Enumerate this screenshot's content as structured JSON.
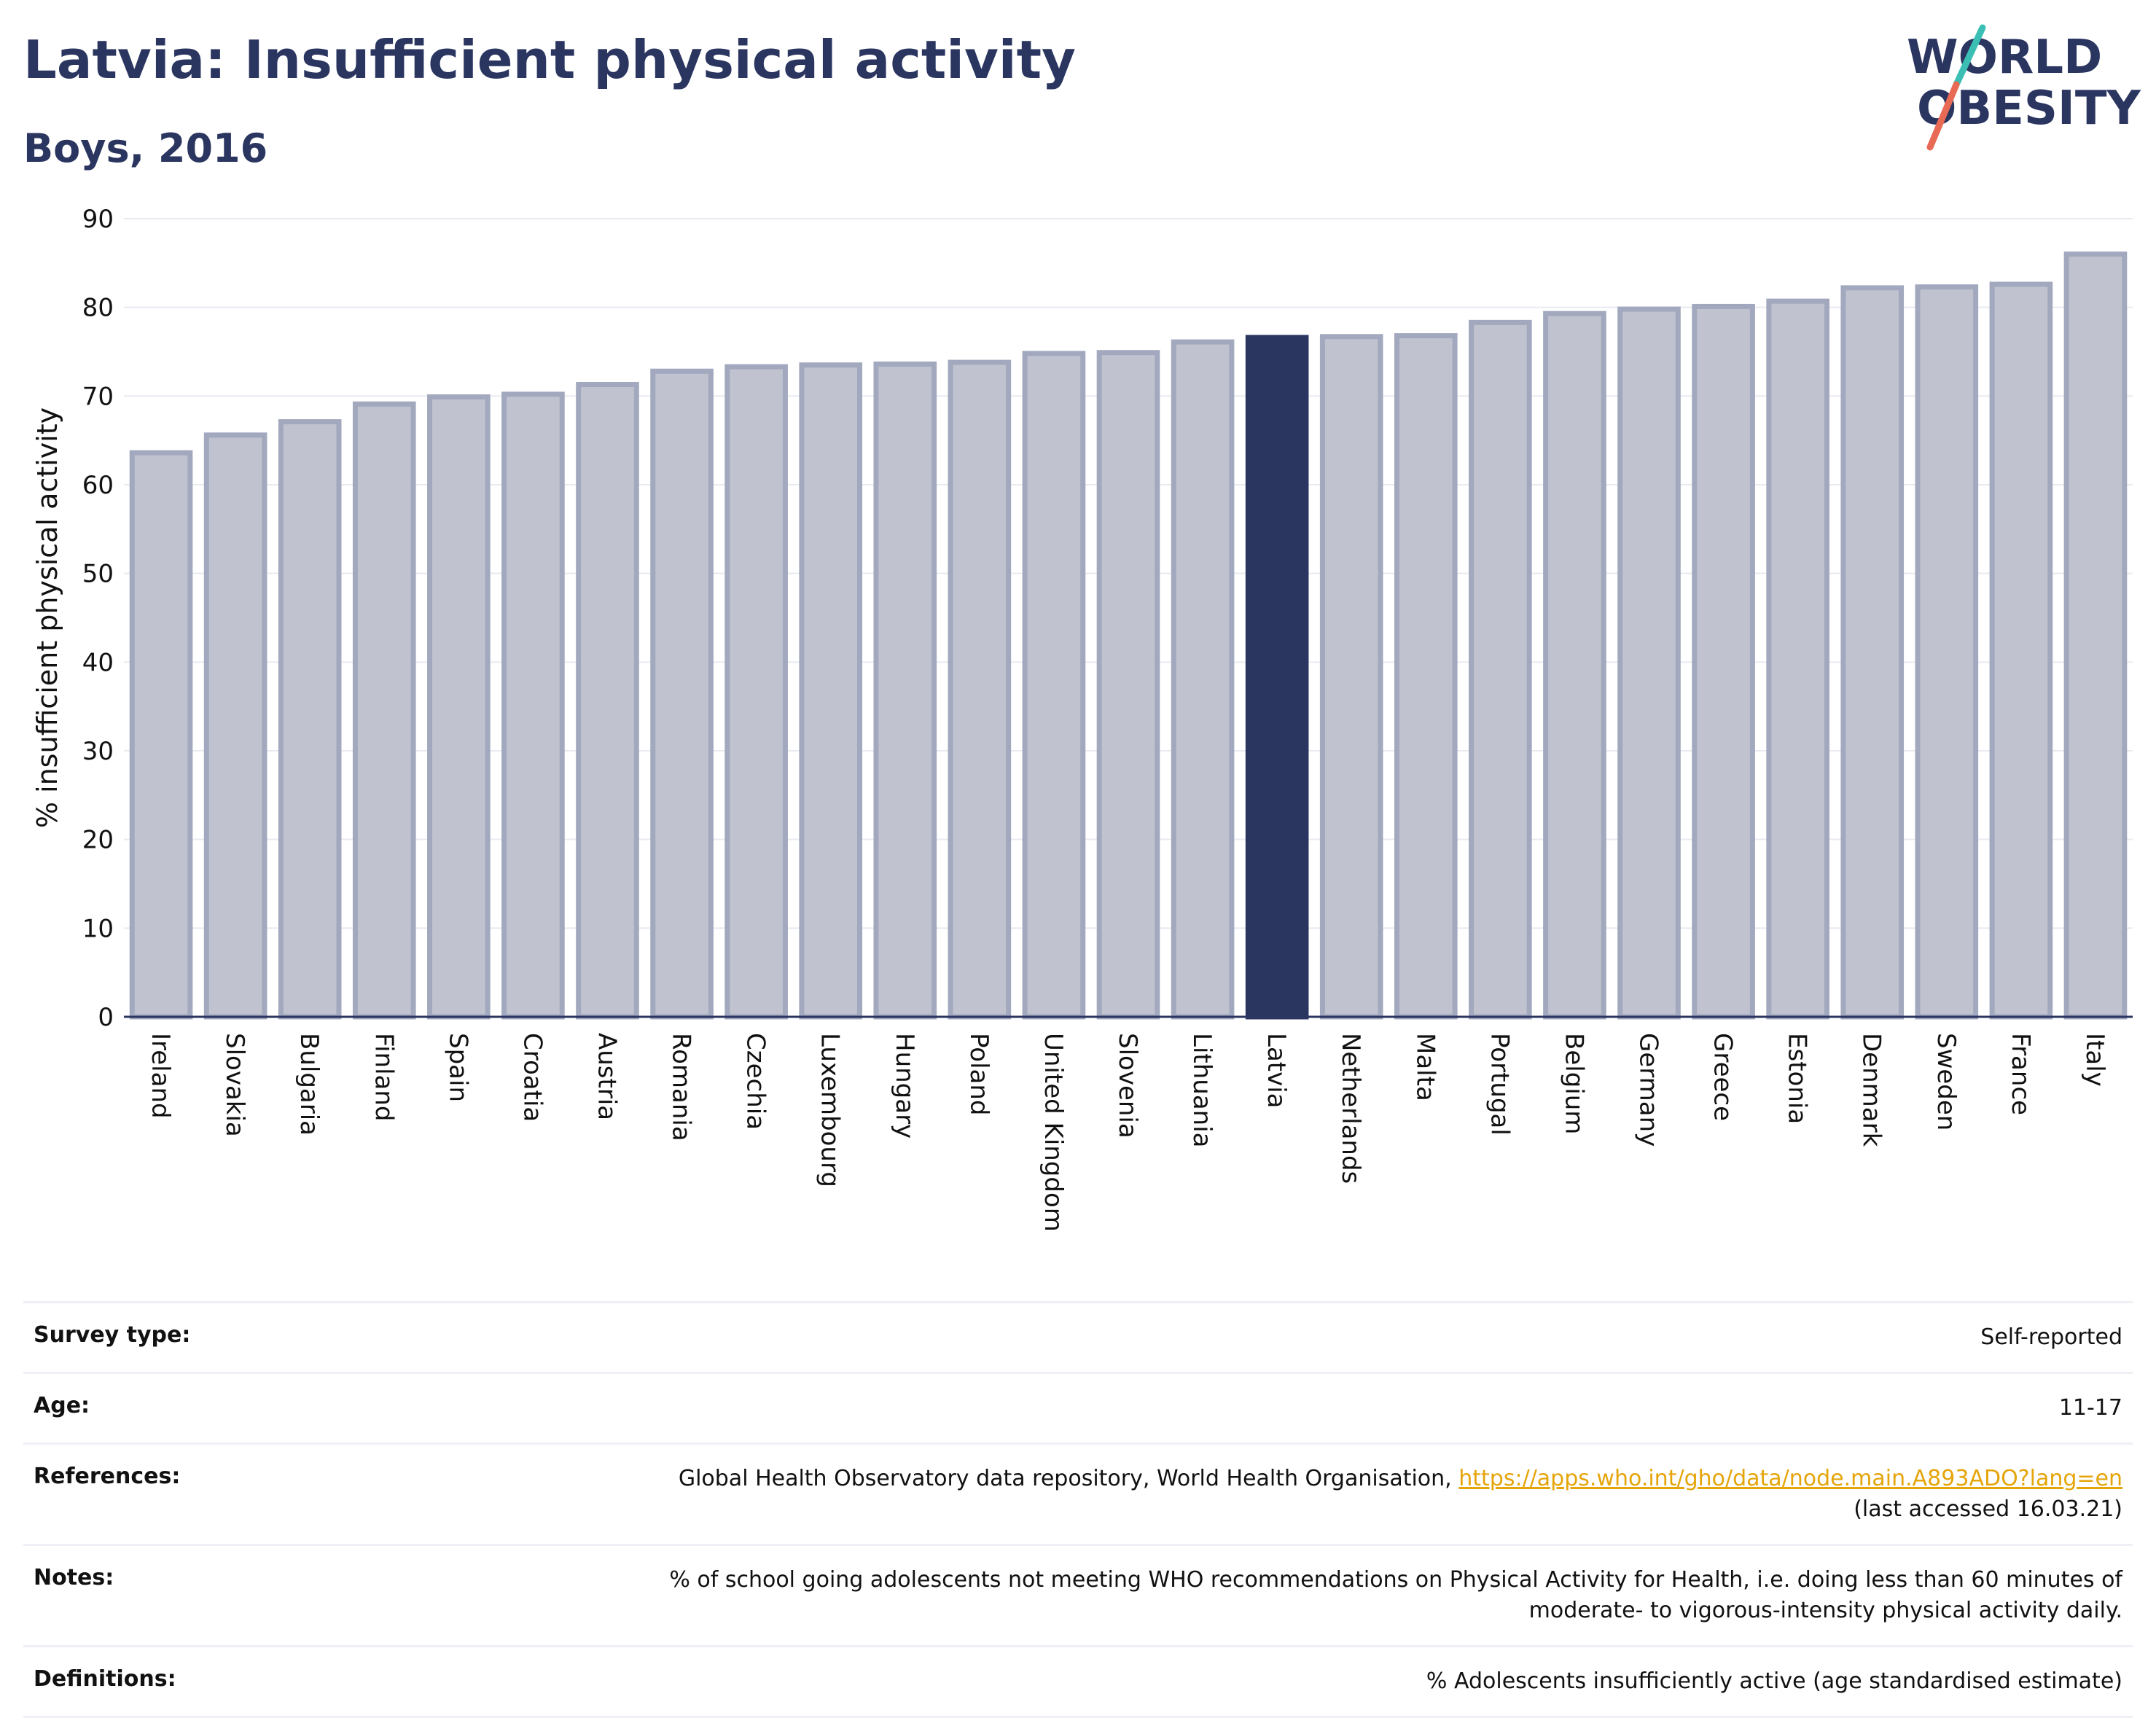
{
  "title": "Latvia: Insufficient physical activity",
  "subtitle": "Boys, 2016",
  "logo": {
    "line1": "WORLD",
    "line2": "OBESITY",
    "accent_colors": [
      "#3bbfb4",
      "#e86a55"
    ]
  },
  "colors": {
    "bar": "#c0c3cf",
    "bar_border": "#a2a8bd",
    "highlight": "#2a3560",
    "grid": "#e8eaf0"
  },
  "chart_data": {
    "type": "bar",
    "ylabel": "% insufficient physical activity",
    "xlabel": "",
    "ylim": [
      0,
      90
    ],
    "yticks": [
      0,
      10,
      20,
      30,
      40,
      50,
      60,
      70,
      80,
      90
    ],
    "grid": true,
    "highlight": "Latvia",
    "categories": [
      "Ireland",
      "Slovakia",
      "Bulgaria",
      "Finland",
      "Spain",
      "Croatia",
      "Austria",
      "Romania",
      "Czechia",
      "Luxembourg",
      "Hungary",
      "Poland",
      "United Kingdom",
      "Slovenia",
      "Lithuania",
      "Latvia",
      "Netherlands",
      "Malta",
      "Portugal",
      "Belgium",
      "Germany",
      "Greece",
      "Estonia",
      "Denmark",
      "Sweden",
      "France",
      "Italy"
    ],
    "values": [
      63.6,
      65.6,
      67.1,
      69.1,
      69.9,
      70.2,
      71.3,
      72.8,
      73.3,
      73.5,
      73.6,
      73.8,
      74.8,
      74.9,
      76.1,
      76.6,
      76.7,
      76.8,
      78.3,
      79.3,
      79.8,
      80.1,
      80.7,
      82.2,
      82.3,
      82.6,
      86.0
    ]
  },
  "info": {
    "survey_type": {
      "label": "Survey type:",
      "value": "Self-reported"
    },
    "age": {
      "label": "Age:",
      "value": "11-17"
    },
    "references": {
      "label": "References:",
      "text": "Global Health Observatory data repository, World Health Organisation,",
      "link": "https://apps.who.int/gho/data/node.main.A893ADO?lang=en",
      "accessed": "(last accessed 16.03.21)"
    },
    "notes": {
      "label": "Notes:",
      "line1": "% of school going adolescents not meeting WHO recommendations on Physical Activity for Health, i.e. doing less than 60 minutes of",
      "line2": "moderate- to vigorous-intensity physical activity daily."
    },
    "definitions": {
      "label": "Definitions:",
      "value": "% Adolescents insufficiently active (age standardised estimate)"
    }
  }
}
